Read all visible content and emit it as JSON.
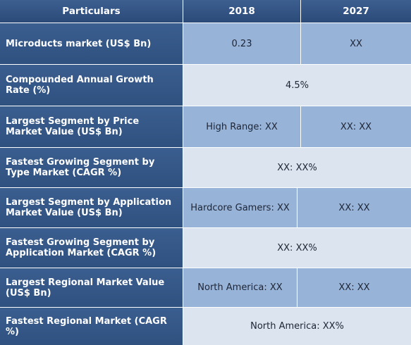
{
  "header": {
    "particulars": "Particulars",
    "year1": "2018",
    "year2": "2027"
  },
  "rows": [
    {
      "label": "Microducts market (US$ Bn)",
      "v2018": "0.23",
      "v2027": "XX"
    },
    {
      "label": "Compounded Annual Growth Rate (%)",
      "merged": "4.5%"
    },
    {
      "label": "Largest Segment by Price Market Value (US$ Bn)",
      "v2018": "High Range: XX",
      "v2027": "XX: XX"
    },
    {
      "label": "Fastest Growing Segment by Type Market (CAGR %)",
      "merged": "XX: XX%"
    },
    {
      "label": "Largest Segment by Application Market Value (US$ Bn)",
      "v2018": "Hardcore Gamers: XX",
      "v2027": "XX: XX"
    },
    {
      "label": "Fastest Growing Segment by Application Market (CAGR %)",
      "merged": "XX: XX%"
    },
    {
      "label": "Largest Regional Market Value (US$ Bn)",
      "v2018": "North America: XX",
      "v2027": "XX: XX"
    },
    {
      "label": "Fastest Regional Market (CAGR %)",
      "merged": "North America: XX%"
    }
  ]
}
